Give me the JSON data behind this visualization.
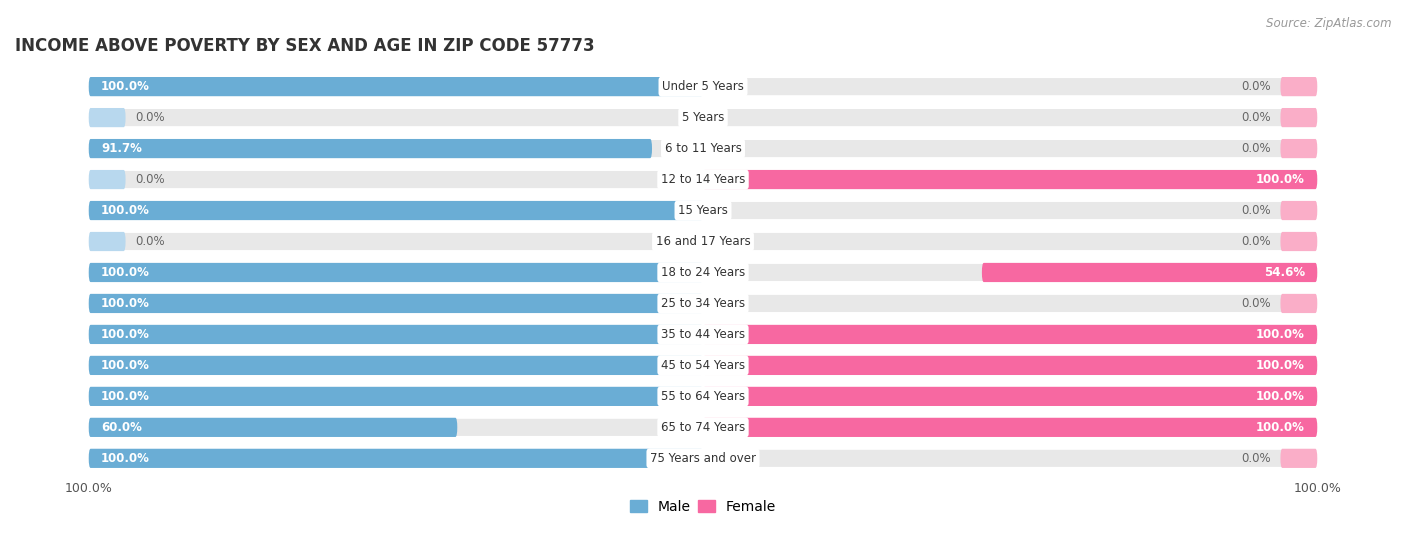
{
  "title": "INCOME ABOVE POVERTY BY SEX AND AGE IN ZIP CODE 57773",
  "source": "Source: ZipAtlas.com",
  "categories": [
    "Under 5 Years",
    "5 Years",
    "6 to 11 Years",
    "12 to 14 Years",
    "15 Years",
    "16 and 17 Years",
    "18 to 24 Years",
    "25 to 34 Years",
    "35 to 44 Years",
    "45 to 54 Years",
    "55 to 64 Years",
    "65 to 74 Years",
    "75 Years and over"
  ],
  "male_values": [
    100.0,
    0.0,
    91.7,
    0.0,
    100.0,
    0.0,
    100.0,
    100.0,
    100.0,
    100.0,
    100.0,
    60.0,
    100.0
  ],
  "female_values": [
    0.0,
    0.0,
    0.0,
    100.0,
    0.0,
    0.0,
    54.6,
    0.0,
    100.0,
    100.0,
    100.0,
    100.0,
    0.0
  ],
  "male_color": "#6aadd5",
  "female_color": "#f768a1",
  "male_color_light": "#b8d8ee",
  "female_color_light": "#faaec8",
  "row_bg_color": "#e8e8e8",
  "bar_height": 0.62,
  "title_fontsize": 12,
  "label_fontsize": 8.5,
  "tick_fontsize": 9,
  "legend_fontsize": 10,
  "source_fontsize": 8.5,
  "zero_stub": 6.0
}
